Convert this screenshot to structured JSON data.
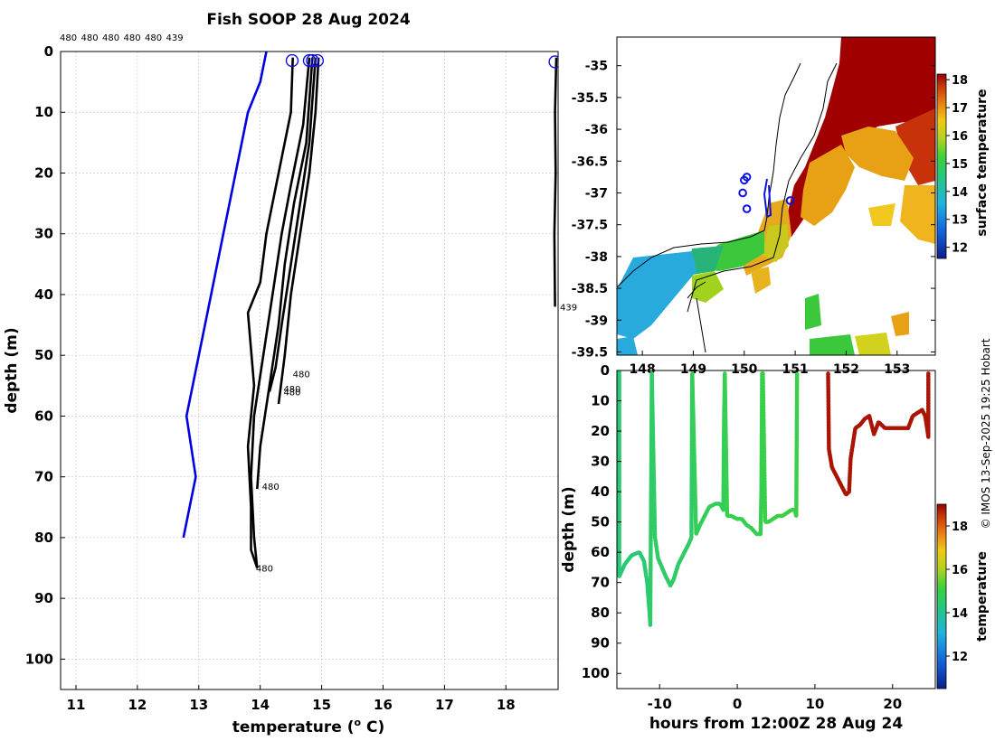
{
  "colors": {
    "climatology": "#0000e0",
    "profile": "#000000",
    "marker": "#1010e0",
    "grid": "#c8c8c8"
  },
  "credit": "© IMOS 13-Sep-2025 19:25 Hobart",
  "chart_data": [
    {
      "id": "profiles",
      "type": "line",
      "title": "Fish SOOP 28 Aug 2024",
      "xlabel": "temperature (° C)",
      "xlabel_main": "temperature (",
      "xlabel_sup": "o",
      "xlabel_unit": " C)",
      "ylabel": "depth (m)",
      "xlim": [
        10.75,
        18.85
      ],
      "ylim": [
        105,
        0
      ],
      "xticks": [
        11,
        12,
        13,
        14,
        15,
        16,
        17,
        18
      ],
      "yticks": [
        0,
        10,
        20,
        30,
        40,
        50,
        60,
        70,
        80,
        90,
        100
      ],
      "top_labels": [
        "480",
        "480",
        "480",
        "480",
        "480",
        "439"
      ],
      "surface_markers": [
        {
          "t": 14.52,
          "d": 1.5
        },
        {
          "t": 14.8,
          "d": 1.5
        },
        {
          "t": 14.85,
          "d": 1.5
        },
        {
          "t": 14.93,
          "d": 1.5
        },
        {
          "t": 18.8,
          "d": 1.7
        }
      ],
      "series": [
        {
          "name": "climatology",
          "color": "#0000e0",
          "t": [
            14.1,
            14.0,
            13.8,
            13.6,
            13.4,
            13.2,
            13.0,
            12.8,
            12.95,
            12.85,
            12.75
          ],
          "d": [
            0,
            5,
            10,
            20,
            30,
            40,
            50,
            60,
            70,
            75,
            80
          ]
        },
        {
          "name": "profile-1",
          "color": "#000000",
          "t": [
            14.53,
            14.5,
            14.3,
            14.1,
            14.0,
            13.8,
            13.9,
            13.8,
            13.85,
            13.85,
            13.95
          ],
          "d": [
            1,
            10,
            20,
            30,
            38,
            43,
            55,
            65,
            75,
            82,
            85
          ]
        },
        {
          "name": "profile-2",
          "color": "#000000",
          "t": [
            14.8,
            14.7,
            14.5,
            14.35,
            14.2,
            14.05,
            13.9,
            13.85,
            13.9,
            13.95
          ],
          "d": [
            1,
            12,
            22,
            30,
            40,
            50,
            60,
            70,
            80,
            85
          ]
        },
        {
          "name": "profile-3",
          "color": "#000000",
          "t": [
            14.85,
            14.75,
            14.55,
            14.4,
            14.3,
            14.15,
            14.0,
            13.95
          ],
          "d": [
            1,
            15,
            25,
            35,
            45,
            55,
            65,
            72
          ]
        },
        {
          "name": "profile-4",
          "color": "#000000",
          "t": [
            14.9,
            14.8,
            14.65,
            14.5,
            14.35,
            14.25,
            14.15
          ],
          "d": [
            1,
            15,
            25,
            35,
            45,
            52,
            56
          ]
        },
        {
          "name": "profile-5",
          "color": "#000000",
          "t": [
            14.95,
            14.9,
            14.8,
            14.65,
            14.5,
            14.4,
            14.3
          ],
          "d": [
            1,
            10,
            20,
            30,
            40,
            50,
            58
          ]
        },
        {
          "name": "profile-6",
          "color": "#000000",
          "t": [
            18.82,
            18.8,
            18.81,
            18.79,
            18.8
          ],
          "d": [
            1,
            10,
            20,
            30,
            42
          ]
        }
      ],
      "bottom_labels": [
        {
          "text": "480",
          "t": 14.5,
          "d": 53
        },
        {
          "text": "480",
          "t": 14.35,
          "d": 56
        },
        {
          "text": "480",
          "t": 14.35,
          "d": 55.5
        },
        {
          "text": "480",
          "t": 14.0,
          "d": 71.5
        },
        {
          "text": "480",
          "t": 13.9,
          "d": 85
        },
        {
          "text": "439",
          "t": 18.85,
          "d": 42
        }
      ]
    },
    {
      "id": "map",
      "type": "heatmap",
      "xlim": [
        147.5,
        153.75
      ],
      "ylim": [
        -39.55,
        -34.55
      ],
      "yticks": [
        -35,
        -35.5,
        -36,
        -36.5,
        -37,
        -37.5,
        -38,
        -38.5,
        -39,
        -39.5
      ],
      "xticks": [
        148,
        149,
        150,
        151,
        152,
        153
      ],
      "colorbar_label": "surface temperature",
      "colorbar_range": [
        11.6,
        18.2
      ],
      "colorbar_ticks": [
        12,
        13,
        14,
        15,
        16,
        17,
        18
      ],
      "track_points": [
        {
          "lon": 150.05,
          "lat": -36.75
        },
        {
          "lon": 150.0,
          "lat": -36.8
        },
        {
          "lon": 149.97,
          "lat": -37.0
        },
        {
          "lon": 150.05,
          "lat": -37.25
        },
        {
          "lon": 150.9,
          "lat": -37.12
        }
      ]
    },
    {
      "id": "section",
      "type": "scatter",
      "xlabel": "hours from 12:00Z 28 Aug 24",
      "ylabel": "depth (m)",
      "xlim": [
        -15.5,
        25.5
      ],
      "ylim": [
        105,
        0
      ],
      "xticks": [
        -10,
        0,
        10,
        20
      ],
      "yticks": [
        0,
        10,
        20,
        30,
        40,
        50,
        60,
        70,
        80,
        90,
        100
      ],
      "colorbar_label": "temperature",
      "colorbar_range": [
        10.5,
        19
      ],
      "colorbar_ticks": [
        12,
        14,
        16,
        18
      ],
      "tracks": [
        {
          "temp": 14.4,
          "h": [
            -15.2,
            -15.2,
            -14.5,
            -13.6,
            -12.6,
            -12.0,
            -11.6,
            -11.3,
            -11.2
          ],
          "d": [
            0.5,
            68,
            64,
            61,
            60,
            63,
            70,
            80,
            84
          ]
        },
        {
          "temp": 14.6,
          "h": [
            -11.2,
            -11.1,
            -11.0,
            -10.6,
            -10.2,
            -9.2,
            -8.6,
            -8.2,
            -7.6,
            -6.8,
            -6.2,
            -5.9,
            -5.8
          ],
          "d": [
            84,
            40,
            1,
            55,
            62,
            68,
            71,
            69,
            64,
            60,
            57,
            55,
            1
          ]
        },
        {
          "temp": 14.8,
          "h": [
            -5.8,
            -5.3,
            -4.8,
            -4.2,
            -3.6,
            -2.8,
            -2.2,
            -1.8,
            -1.7,
            -1.6
          ],
          "d": [
            1,
            54,
            51,
            48,
            45,
            44,
            44,
            46,
            15,
            1
          ]
        },
        {
          "temp": 14.9,
          "h": [
            -1.6,
            -1.3,
            -0.8,
            0,
            0.6,
            1.2,
            1.8,
            2.5,
            3.0,
            3.1,
            3.2,
            3.3
          ],
          "d": [
            1,
            48,
            48,
            49,
            49,
            51,
            52,
            54,
            54,
            40,
            1,
            1
          ]
        },
        {
          "temp": 15.0,
          "h": [
            3.3,
            3.6,
            4.0,
            4.6,
            5.2,
            5.8,
            6.4,
            7.0,
            7.4,
            7.6,
            7.7
          ],
          "d": [
            1,
            50,
            50,
            49,
            48,
            48,
            47,
            46,
            46,
            48,
            1
          ]
        },
        {
          "temp": 18.8,
          "h": [
            11.7,
            11.8,
            12.2,
            12.8,
            13.4,
            14.0,
            14.4,
            14.6,
            15.2,
            15.8,
            16.4,
            17.0,
            17.6,
            18.2,
            19.0,
            19.6,
            20.4,
            21.2,
            22.0,
            22.6,
            23.2,
            23.8,
            24.2,
            24.5,
            24.6,
            24.6
          ],
          "d": [
            1,
            26,
            32,
            35,
            38,
            41,
            40,
            29,
            19,
            18,
            16,
            15,
            21,
            17,
            19,
            19,
            19,
            19,
            19,
            15,
            14,
            13,
            15,
            20,
            22,
            1
          ]
        }
      ]
    }
  ]
}
